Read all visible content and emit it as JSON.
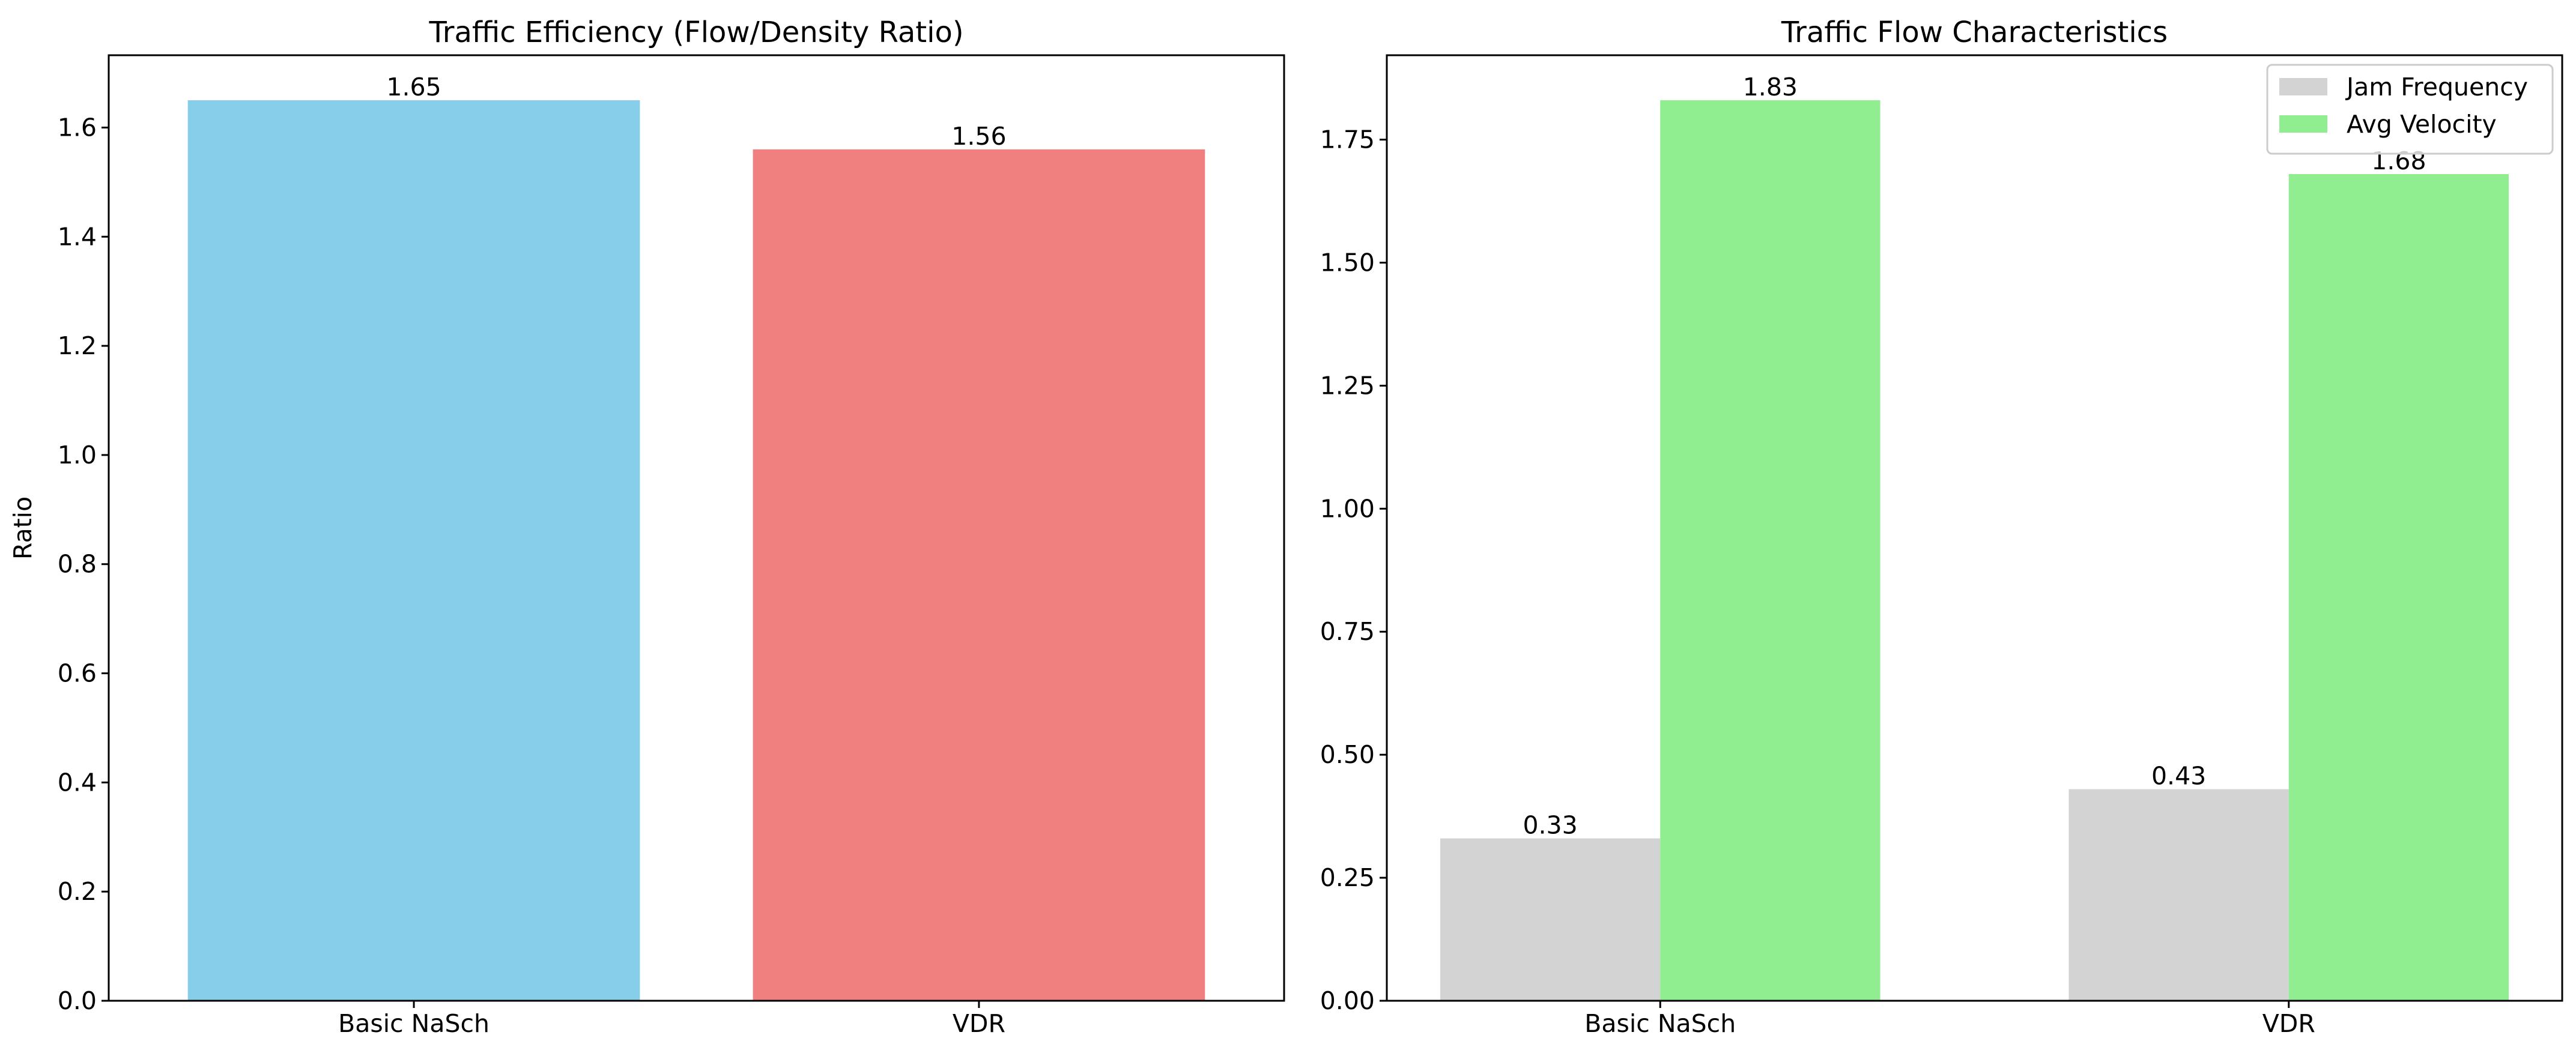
{
  "chart_data": [
    {
      "type": "bar",
      "title": "Traffic Efficiency (Flow/Density Ratio)",
      "xlabel": "",
      "ylabel": "Ratio",
      "categories": [
        "Basic NaSch",
        "VDR"
      ],
      "values": [
        1.65,
        1.56
      ],
      "value_labels": [
        "1.65",
        "1.56"
      ],
      "colors": [
        "#87ceeb",
        "#f08080"
      ],
      "ylim": [
        0,
        1.7325
      ],
      "yticks": [
        0.0,
        0.2,
        0.4,
        0.6,
        0.8,
        1.0,
        1.2,
        1.4,
        1.6
      ],
      "ytick_labels": [
        "0.0",
        "0.2",
        "0.4",
        "0.6",
        "0.8",
        "1.0",
        "1.2",
        "1.4",
        "1.6"
      ],
      "grid": false,
      "legend": false
    },
    {
      "type": "bar",
      "title": "Traffic Flow Characteristics",
      "xlabel": "",
      "ylabel": "",
      "categories": [
        "Basic NaSch",
        "VDR"
      ],
      "series": [
        {
          "name": "Jam Frequency",
          "values": [
            0.33,
            0.43
          ],
          "value_labels": [
            "0.33",
            "0.43"
          ],
          "color": "#d3d3d3"
        },
        {
          "name": "Avg Velocity",
          "values": [
            1.83,
            1.68
          ],
          "value_labels": [
            "1.83",
            "1.68"
          ],
          "color": "#90ee90"
        }
      ],
      "ylim": [
        0,
        1.9215
      ],
      "yticks": [
        0.0,
        0.25,
        0.5,
        0.75,
        1.0,
        1.25,
        1.5,
        1.75
      ],
      "ytick_labels": [
        "0.00",
        "0.25",
        "0.50",
        "0.75",
        "1.00",
        "1.25",
        "1.50",
        "1.75"
      ],
      "grid": false,
      "legend": "top-right"
    }
  ]
}
